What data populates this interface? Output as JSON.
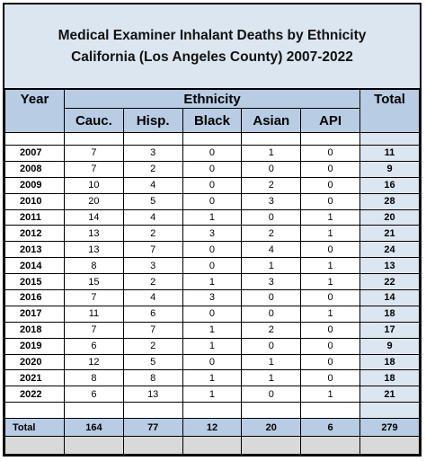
{
  "header": {
    "title_line1": "Medical Examiner Inhalant Deaths by Ethnicity",
    "title_line2": "California (Los Angeles County) 2007-2022"
  },
  "table": {
    "col_year": "Year",
    "col_group": "Ethnicity",
    "col_total": "Total",
    "subcolumns": [
      "Cauc.",
      "Hisp.",
      "Black",
      "Asian",
      "API"
    ],
    "rows": [
      [
        "2007",
        7,
        3,
        0,
        1,
        0,
        11
      ],
      [
        "2008",
        7,
        2,
        0,
        0,
        0,
        9
      ],
      [
        "2009",
        10,
        4,
        0,
        2,
        0,
        16
      ],
      [
        "2010",
        20,
        5,
        0,
        3,
        0,
        28
      ],
      [
        "2011",
        14,
        4,
        1,
        0,
        1,
        20
      ],
      [
        "2012",
        13,
        2,
        3,
        2,
        1,
        21
      ],
      [
        "2013",
        13,
        7,
        0,
        4,
        0,
        24
      ],
      [
        "2014",
        8,
        3,
        0,
        1,
        1,
        13
      ],
      [
        "2015",
        15,
        2,
        1,
        3,
        1,
        22
      ],
      [
        "2016",
        7,
        4,
        3,
        0,
        0,
        14
      ],
      [
        "2017",
        11,
        6,
        0,
        0,
        1,
        18
      ],
      [
        "2018",
        7,
        7,
        1,
        2,
        0,
        17
      ],
      [
        "2019",
        6,
        2,
        1,
        0,
        0,
        9
      ],
      [
        "2020",
        12,
        5,
        0,
        1,
        0,
        18
      ],
      [
        "2021",
        8,
        8,
        1,
        1,
        0,
        18
      ],
      [
        "2022",
        6,
        13,
        1,
        0,
        1,
        21
      ]
    ],
    "total_row": [
      "Total",
      164,
      77,
      12,
      20,
      6,
      279
    ]
  }
}
